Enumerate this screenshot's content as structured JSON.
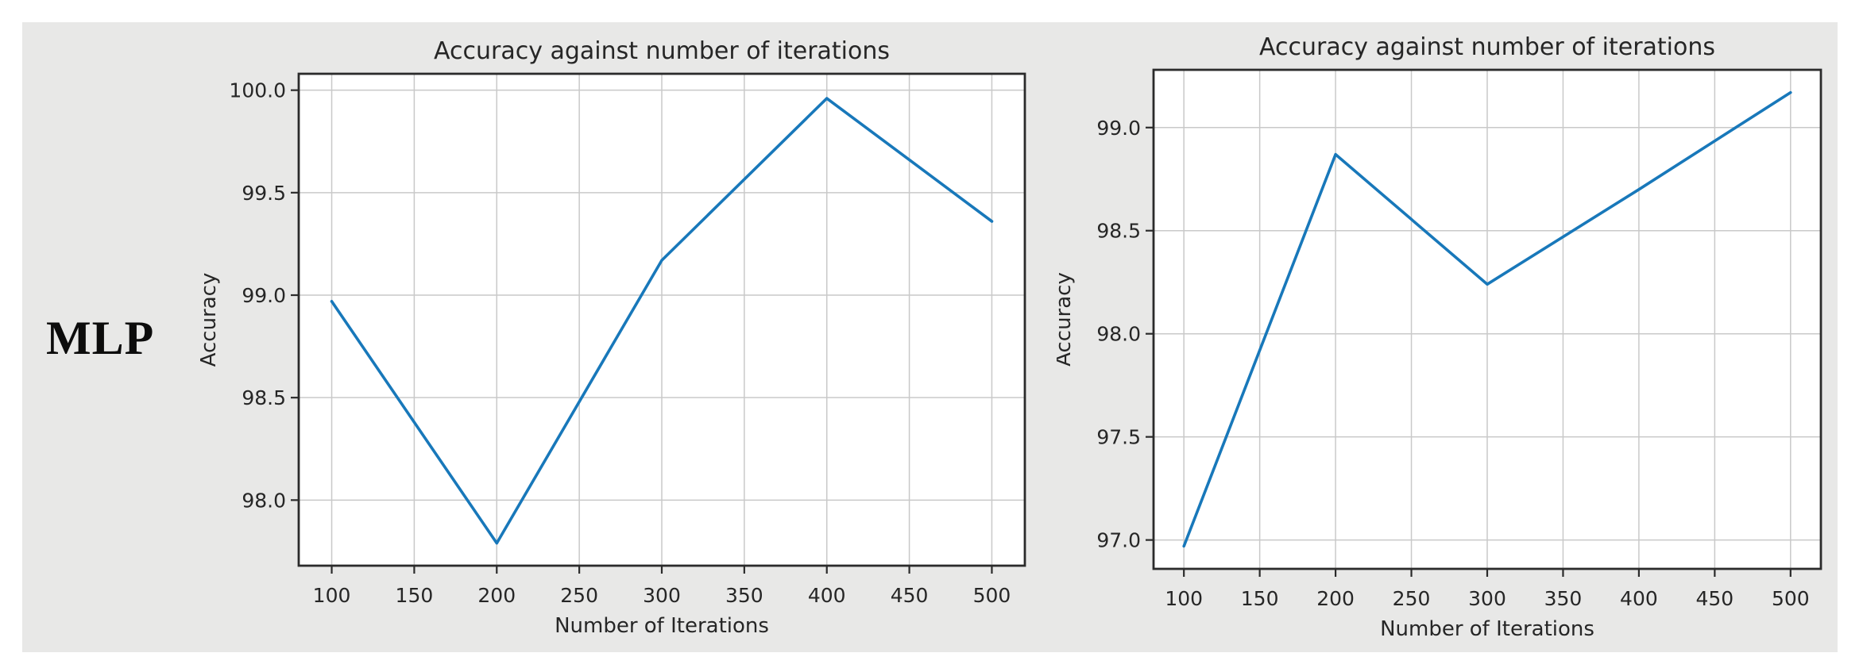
{
  "page": {
    "row_label": "MLP"
  },
  "colors": {
    "panel_bg": "#e8e8e7",
    "axes_bg": "#ffffff",
    "grid": "#c9c9c9",
    "spine": "#2b2b2b",
    "text": "#262626",
    "line": "#1878ba"
  },
  "chart_data": [
    {
      "type": "line",
      "title": "Accuracy against number of iterations",
      "xlabel": "Number of Iterations",
      "ylabel": "Accuracy",
      "x": [
        100,
        200,
        300,
        400,
        500
      ],
      "values": [
        98.97,
        97.79,
        99.17,
        99.96,
        99.36
      ],
      "xlim": [
        80,
        520
      ],
      "ylim": [
        97.68,
        100.08
      ],
      "xticks": [
        100,
        150,
        200,
        250,
        300,
        350,
        400,
        450,
        500
      ],
      "yticks": [
        98.0,
        98.5,
        99.0,
        99.5,
        100.0
      ],
      "grid": true,
      "legend": "none"
    },
    {
      "type": "line",
      "title": "Accuracy against number of iterations",
      "xlabel": "Number of Iterations",
      "ylabel": "Accuracy",
      "x": [
        100,
        200,
        300,
        400,
        500
      ],
      "values": [
        96.97,
        98.87,
        98.24,
        98.7,
        99.17
      ],
      "xlim": [
        80,
        520
      ],
      "ylim": [
        96.86,
        99.28
      ],
      "xticks": [
        100,
        150,
        200,
        250,
        300,
        350,
        400,
        450,
        500
      ],
      "yticks": [
        97.0,
        97.5,
        98.0,
        98.5,
        99.0
      ],
      "grid": true,
      "legend": "none"
    }
  ]
}
